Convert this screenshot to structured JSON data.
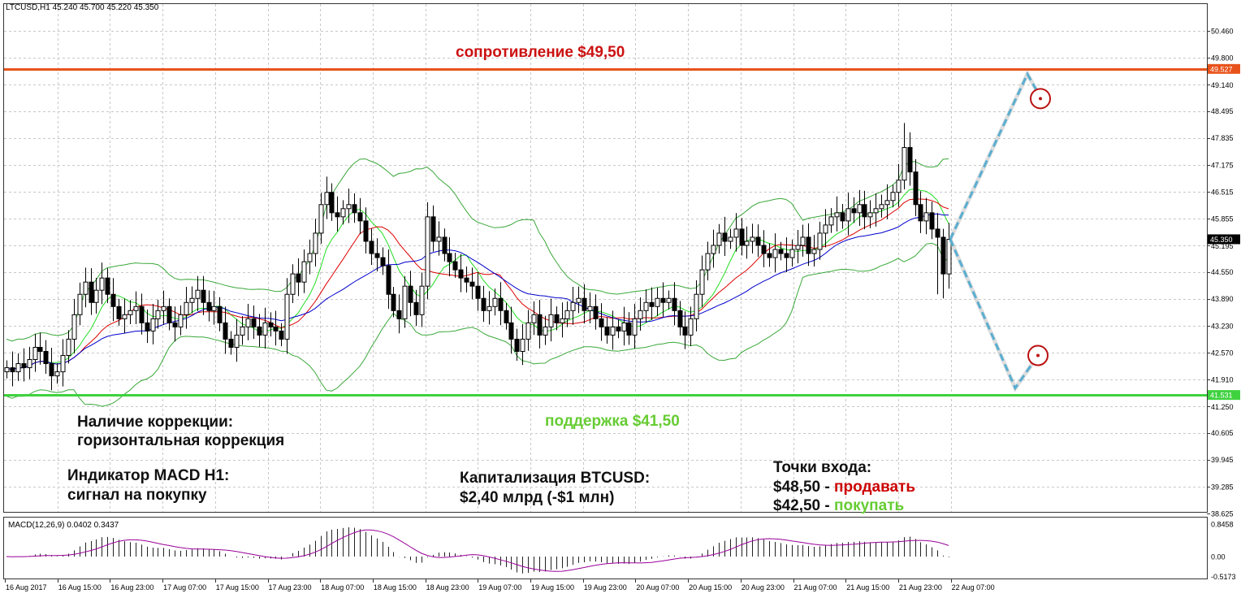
{
  "header": {
    "symbol_info": "LTCUSD,H1  45.240 45.700 45.220 45.350"
  },
  "macd_label": "MACD(12,26,9) 0.0402 0.3437",
  "annotations": {
    "resistance": "сопротивление $49,50",
    "support": "поддержка $41,50",
    "correction_title": "Наличие коррекции:",
    "correction_value": "горизонтальная коррекция",
    "macd_title": "Индикатор MACD H1:",
    "macd_value": "сигнал на покупку",
    "cap_title": "Капитализация BTCUSD:",
    "cap_value": "$2,40 млрд (-$1 млн)",
    "entry_title": "Точки входа:",
    "entry_sell_price": "$48,50 - ",
    "entry_sell_word": "продавать",
    "entry_buy_price": "$42,50 - ",
    "entry_buy_word": "покупать"
  },
  "colors": {
    "resistance": "#e8531b",
    "support": "#3fd23f",
    "sell": "#cc0000",
    "buy": "#66cc33",
    "bollinger": "#3aa83a",
    "ma_green": "#22dd22",
    "ma_red": "#dd0000",
    "ma_blue": "#0000cc",
    "macd_hist": "#222222",
    "macd_signal": "#990099",
    "forecast": "#5aaed0",
    "circle": "#bb1111"
  },
  "chart_data": {
    "type": "candlestick",
    "symbol": "LTCUSD",
    "timeframe": "H1",
    "last_price": 45.35,
    "ohlc_header": {
      "open": 45.24,
      "high": 45.7,
      "low": 45.22,
      "close": 45.35
    },
    "y_ticks": [
      "50.460",
      "49.800",
      "49.140",
      "48.495",
      "47.835",
      "47.175",
      "46.515",
      "45.855",
      "45.195",
      "44.550",
      "43.890",
      "43.230",
      "42.570",
      "41.910",
      "41.250",
      "40.605",
      "39.945",
      "39.285",
      "38.625"
    ],
    "y_tick_values": [
      50.46,
      49.8,
      49.14,
      48.495,
      47.835,
      47.175,
      46.515,
      45.855,
      45.195,
      44.55,
      43.89,
      43.23,
      42.57,
      41.91,
      41.25,
      40.605,
      39.945,
      39.285,
      38.625
    ],
    "x_ticks": [
      "16 Aug 2017",
      "16 Aug 15:00",
      "16 Aug 23:00",
      "17 Aug 07:00",
      "17 Aug 15:00",
      "17 Aug 23:00",
      "18 Aug 07:00",
      "18 Aug 15:00",
      "18 Aug 23:00",
      "19 Aug 07:00",
      "19 Aug 15:00",
      "19 Aug 23:00",
      "20 Aug 07:00",
      "20 Aug 15:00",
      "20 Aug 23:00",
      "21 Aug 07:00",
      "21 Aug 15:00",
      "21 Aug 23:00",
      "22 Aug 07:00"
    ],
    "price_labels": {
      "resistance": "49.527",
      "support": "41.531",
      "current": "45.350"
    },
    "levels": {
      "resistance": 49.527,
      "support": 41.531
    },
    "macd_axis": {
      "ticks": [
        "0.8458",
        "0.00",
        "-0.5173"
      ],
      "values": [
        0.8458,
        0,
        -0.5173
      ]
    },
    "closes": [
      42.2,
      42.1,
      42.3,
      42.2,
      42.4,
      42.7,
      42.6,
      42.3,
      42.0,
      42.1,
      42.5,
      42.9,
      43.5,
      44.0,
      44.3,
      43.8,
      44.1,
      44.4,
      44.0,
      43.7,
      43.4,
      43.5,
      43.6,
      43.7,
      43.3,
      43.1,
      43.4,
      43.6,
      43.7,
      43.3,
      43.2,
      43.5,
      43.8,
      43.9,
      44.1,
      43.8,
      43.6,
      43.7,
      43.3,
      42.9,
      42.7,
      43.0,
      43.2,
      43.4,
      43.2,
      43.0,
      43.3,
      43.2,
      43.1,
      42.9,
      44.0,
      44.5,
      44.3,
      44.8,
      45.0,
      45.5,
      46.2,
      46.5,
      46.0,
      45.9,
      46.1,
      46.2,
      46.0,
      45.8,
      45.3,
      45.0,
      44.9,
      44.7,
      44.0,
      43.6,
      43.4,
      44.2,
      43.8,
      43.5,
      44.2,
      45.9,
      45.3,
      45.4,
      45.0,
      44.8,
      44.6,
      44.4,
      44.3,
      44.2,
      43.9,
      43.6,
      43.7,
      43.9,
      43.6,
      43.3,
      42.9,
      42.6,
      42.9,
      43.3,
      43.5,
      43.0,
      43.2,
      43.5,
      43.3,
      43.4,
      43.6,
      43.8,
      43.9,
      43.6,
      43.7,
      43.4,
      43.2,
      43.0,
      43.2,
      43.1,
      43.3,
      43.0,
      43.4,
      43.6,
      43.8,
      43.7,
      43.9,
      43.8,
      43.9,
      43.6,
      43.2,
      43.0,
      43.4,
      44.0,
      44.6,
      45.0,
      45.2,
      45.5,
      45.3,
      45.4,
      45.6,
      45.2,
      45.3,
      45.4,
      45.2,
      45.0,
      44.9,
      45.1,
      45.0,
      44.9,
      45.1,
      45.2,
      45.4,
      45.0,
      45.1,
      45.5,
      45.7,
      45.9,
      46.0,
      45.8,
      46.1,
      46.0,
      46.2,
      45.9,
      46.0,
      46.1,
      46.2,
      46.3,
      46.5,
      46.8,
      47.6,
      47.0,
      46.2,
      45.8,
      46.0,
      45.6,
      45.4,
      44.5,
      45.35
    ]
  }
}
